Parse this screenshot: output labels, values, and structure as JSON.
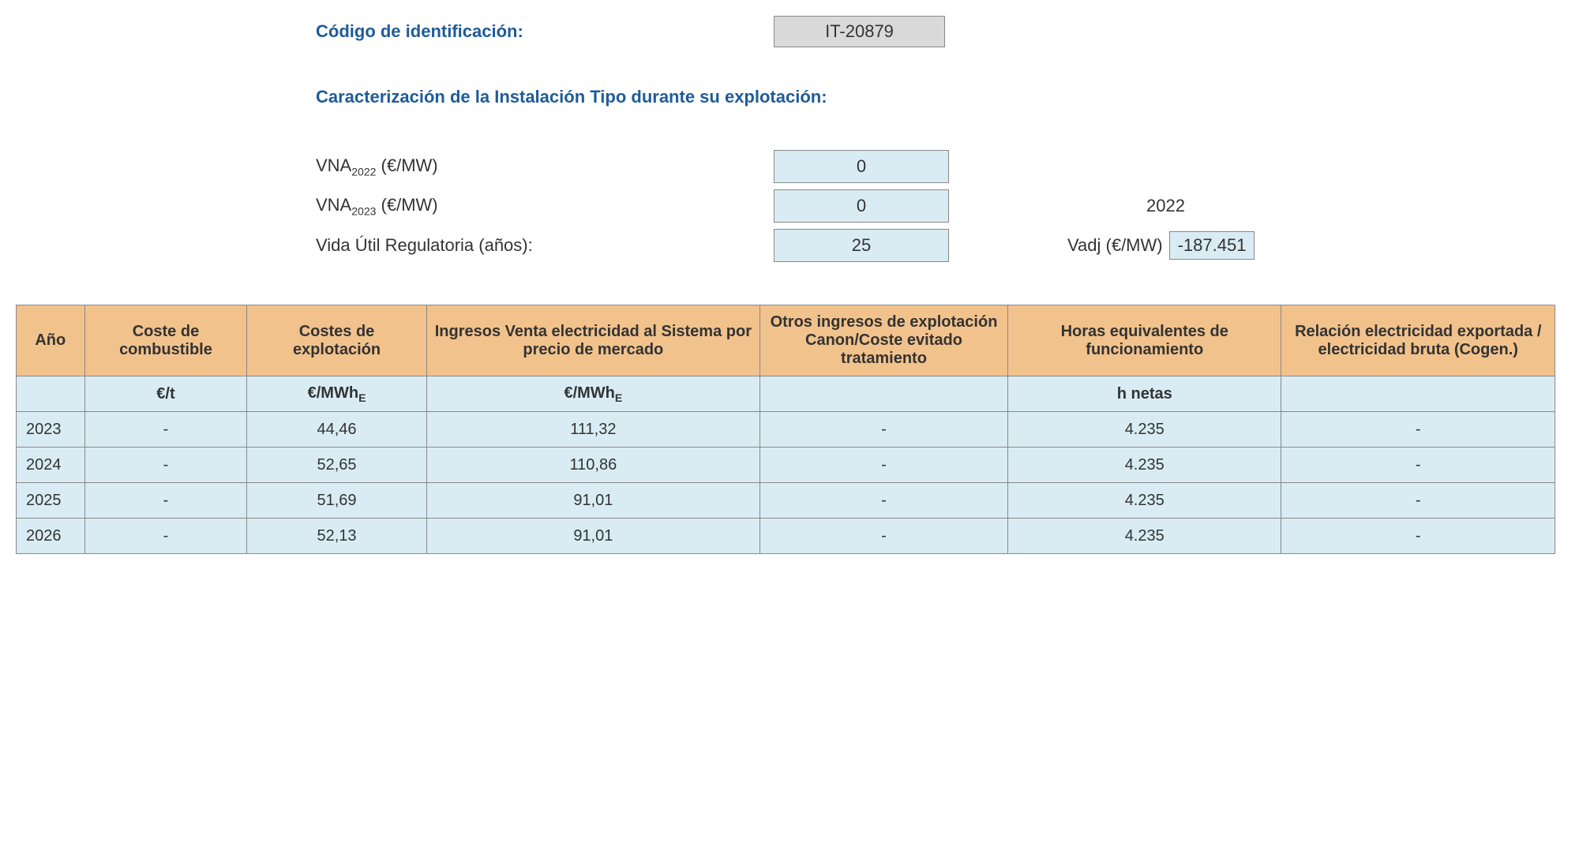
{
  "header": {
    "id_label": "Código de identificación:",
    "id_value": "IT-20879",
    "section_title": "Caracterización de la Instalación Tipo durante su explotación:"
  },
  "params": {
    "vna2022_label_prefix": "VNA",
    "vna2022_label_sub": "2022",
    "vna2022_label_suffix": " (€/MW)",
    "vna2022_value": "0",
    "vna2023_label_prefix": "VNA",
    "vna2023_label_sub": "2023",
    "vna2023_label_suffix": " (€/MW)",
    "vna2023_value": "0",
    "year_extra": "2022",
    "vida_label": "Vida Útil Regulatoria (años):",
    "vida_value": "25",
    "vadj_label": "Vadj (€/MW)",
    "vadj_value": "-187.451"
  },
  "table": {
    "headers": {
      "c0": "Año",
      "c1": "Coste de combustible",
      "c2": "Costes de explotación",
      "c3": "Ingresos Venta electricidad al Sistema por precio de mercado",
      "c4": "Otros ingresos de explotación Canon/Coste evitado tratamiento",
      "c5": "Horas equivalentes de funcionamiento",
      "c6": "Relación electricidad exportada / electricidad bruta (Cogen.)"
    },
    "units": {
      "c0": "",
      "c1": "€/t",
      "c2_prefix": "€/MWh",
      "c2_sub": "E",
      "c3_prefix": "€/MWh",
      "c3_sub": "E",
      "c4": "",
      "c5": "h netas",
      "c6": ""
    },
    "rows": [
      {
        "c0": "2023",
        "c1": "-",
        "c2": "44,46",
        "c3": "111,32",
        "c4": "-",
        "c5": "4.235",
        "c6": "-"
      },
      {
        "c0": "2024",
        "c1": "-",
        "c2": "52,65",
        "c3": "110,86",
        "c4": "-",
        "c5": "4.235",
        "c6": "-"
      },
      {
        "c0": "2025",
        "c1": "-",
        "c2": "51,69",
        "c3": "91,01",
        "c4": "-",
        "c5": "4.235",
        "c6": "-"
      },
      {
        "c0": "2026",
        "c1": "-",
        "c2": "52,13",
        "c3": "91,01",
        "c4": "-",
        "c5": "4.235",
        "c6": "-"
      }
    ],
    "col_widths": {
      "c0": "80px",
      "c1": "190px",
      "c2": "210px",
      "c3": "390px",
      "c4": "290px",
      "c5": "320px",
      "c6": "320px"
    },
    "colors": {
      "header_bg": "#f2c28c",
      "cell_bg": "#d9ecf4",
      "border": "#888888",
      "heading_text": "#1f5c99"
    }
  }
}
